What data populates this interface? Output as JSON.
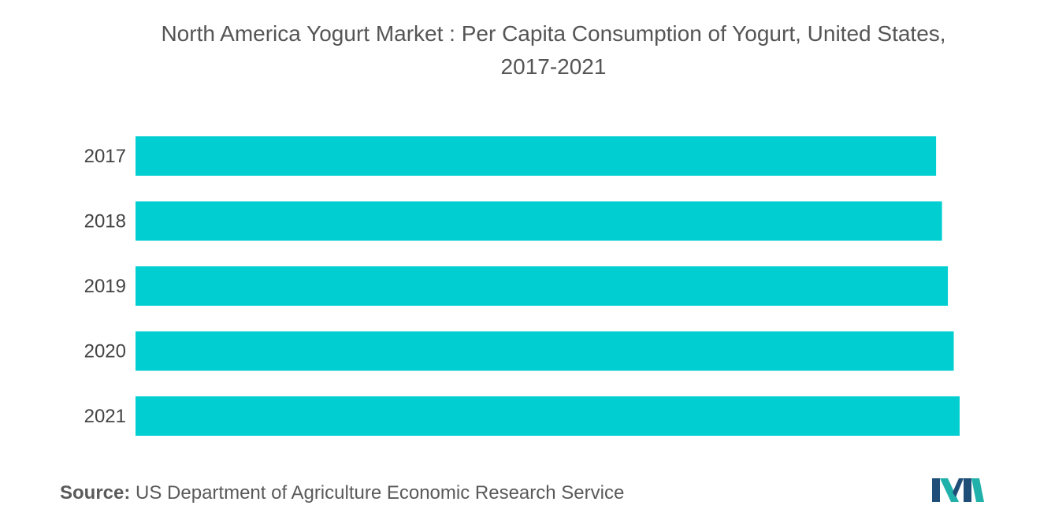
{
  "title_line1": "North America Yogurt Market : Per Capita Consumption of Yogurt, United States,",
  "title_line2": "2017-2021",
  "source_label": "Source:",
  "source_text": "US Department of Agriculture Economic Research Service",
  "logo_icon": "mordor-intelligence-logo-icon",
  "colors": {
    "bar": "#00CED1",
    "text": "#555555",
    "logo_dark": "#1f4e79",
    "logo_light": "#20b2aa"
  },
  "chart_data": {
    "type": "bar",
    "orientation": "horizontal",
    "categories": [
      "2017",
      "2018",
      "2019",
      "2020",
      "2021"
    ],
    "values": [
      13.6,
      13.7,
      13.8,
      13.9,
      14.0
    ],
    "title": "North America Yogurt Market : Per Capita Consumption of Yogurt, United States, 2017-2021",
    "xlabel": "",
    "ylabel": "",
    "xlim": [
      0,
      14.0
    ],
    "grid": false,
    "legend": "none"
  }
}
